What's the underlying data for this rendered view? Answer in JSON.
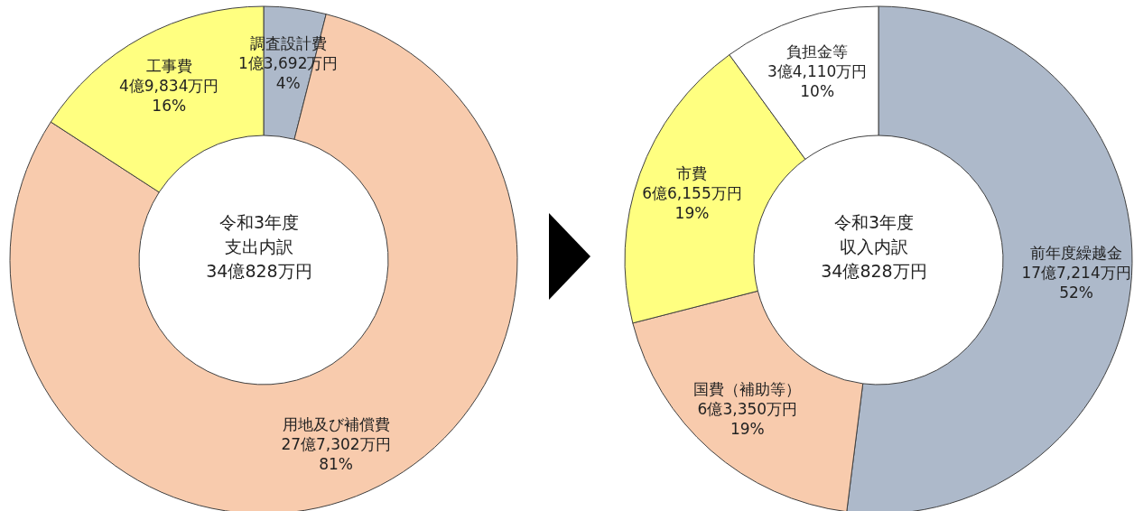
{
  "chart_data": [
    {
      "type": "donut",
      "title": "令和3年度",
      "subtitle": "支出内訳",
      "annotations": [
        "34億828万円"
      ],
      "categories": [
        "調査設計費",
        "用地及び補償費",
        "工事費"
      ],
      "values": [
        4,
        81,
        16
      ],
      "value_labels": [
        "1億3,692万円\n4%",
        "27億7,302万円\n81%",
        "4億9,834万円\n16%"
      ],
      "colors": [
        "#adb9ca",
        "#f8cbad",
        "#ffff80"
      ]
    },
    {
      "type": "donut",
      "title": "令和3年度",
      "subtitle": "収入内訳",
      "annotations": [
        "34億828万円"
      ],
      "categories": [
        "前年度繰越金",
        "国費（補助等）",
        "市費",
        "負担金等"
      ],
      "values": [
        52,
        19,
        19,
        10
      ],
      "value_labels": [
        "17億7,214万円\n52%",
        "6億3,350万円\n19%",
        "6億6,155万円\n19%",
        "3億4,110万円\n10%"
      ],
      "colors": [
        "#adb9ca",
        "#f8cbad",
        "#ffff80",
        "#ffffff"
      ]
    }
  ]
}
